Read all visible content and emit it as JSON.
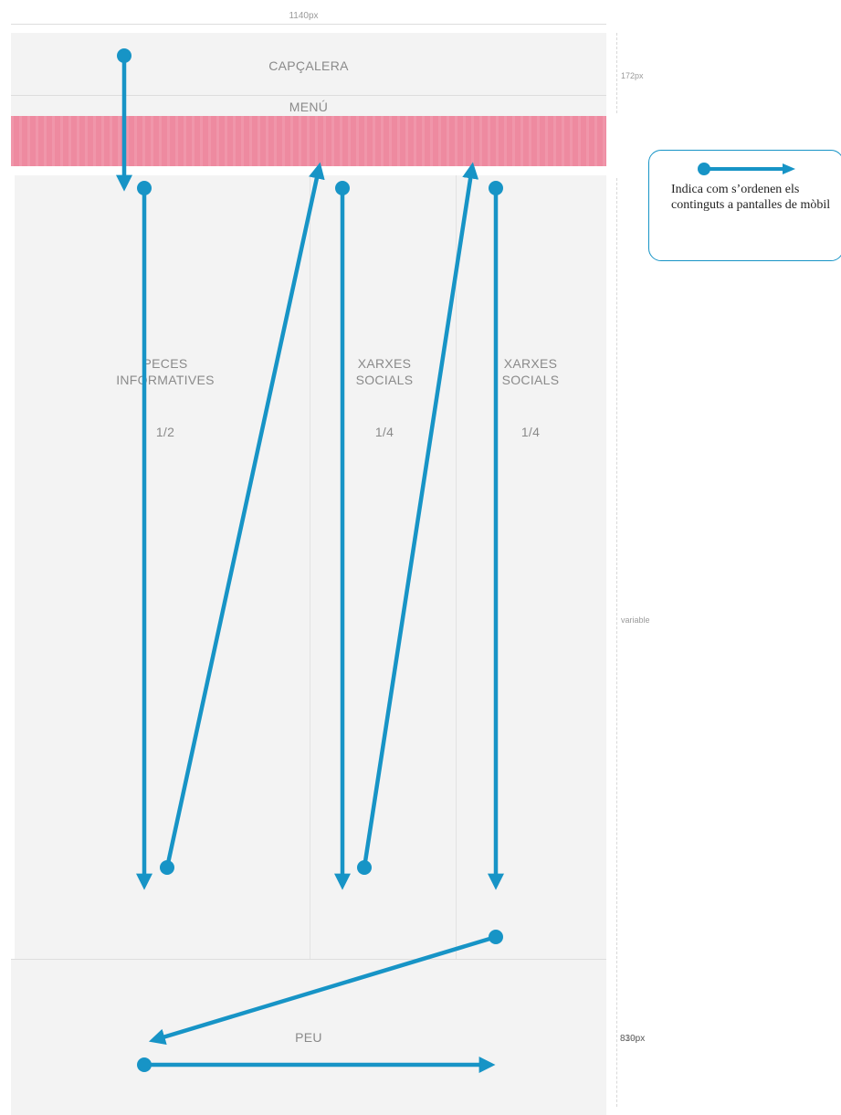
{
  "dimensions": {
    "width_label": "1140px",
    "header_height_label": "172px",
    "content_height_label": "variable",
    "footer_height_label": "830px",
    "footer_height_label_overlap": "819px"
  },
  "blocks": {
    "header": "CAPÇALERA",
    "menu": "MENÚ",
    "col1": {
      "title_line1": "PECES",
      "title_line2": "INFORMATIVES",
      "fraction": "1/2"
    },
    "col2": {
      "title_line1": "XARXES",
      "title_line2": "SOCIALS",
      "fraction": "1/4"
    },
    "col3": {
      "title_line1": "XARXES",
      "title_line2": "SOCIALS",
      "fraction": "1/4"
    },
    "footer": "PEU"
  },
  "legend": {
    "text": "Indica com s’ordenen els continguts a pantalles de mòbil"
  },
  "colors": {
    "arrow": "#1794c6",
    "menu_bar": "#ee8aa0",
    "block_bg": "#f3f3f3"
  }
}
